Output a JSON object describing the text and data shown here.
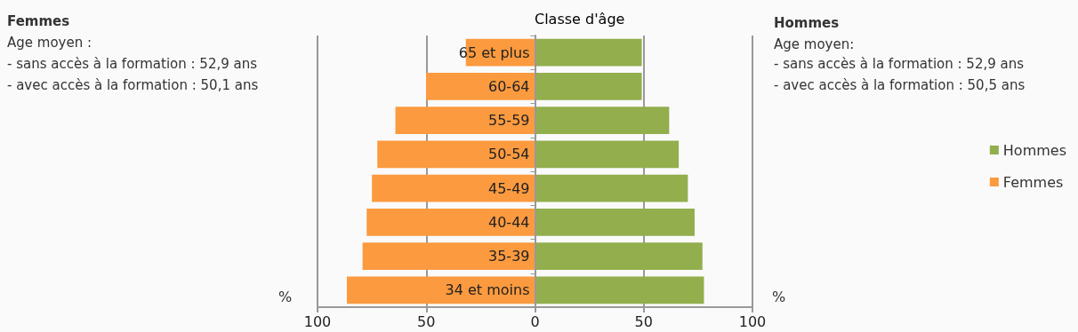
{
  "chart_data": {
    "type": "bar",
    "orientation": "horizontal",
    "stacked": true,
    "ylabel": "Classe d'âge",
    "xlabel": "%",
    "categories": [
      "65 et plus",
      "60-64",
      "55-59",
      "50-54",
      "45-49",
      "40-44",
      "35-39",
      "34 et moins"
    ],
    "series": [
      {
        "name": "Hommes",
        "color": "#92ae4d",
        "values": [
          49.1,
          49.1,
          61.7,
          66.1,
          70.3,
          73.4,
          77,
          77.7
        ]
      },
      {
        "name": "Femmes",
        "color": "#fb9a3f",
        "values": [
          -31.8,
          -50.1,
          -64.2,
          -72.5,
          -75,
          -77.4,
          -79.3,
          -86.5
        ]
      }
    ],
    "xlim": [
      -100,
      100
    ],
    "xticks": [
      {
        "value": -100,
        "label": "100"
      },
      {
        "value": -50,
        "label": "50"
      },
      0,
      50,
      100
    ],
    "grid": "x",
    "legend": "right",
    "annotations": [
      "Femmes",
      "Age moyen :",
      "- sans accès à la formation : 52,9 ans",
      "- avec accès à la formation : 50,1 ans",
      "Hommes",
      "Age moyen:",
      "- sans accès à la formation : 52,9 ans",
      "- avec accès à la formation : 50,5 ans"
    ]
  }
}
